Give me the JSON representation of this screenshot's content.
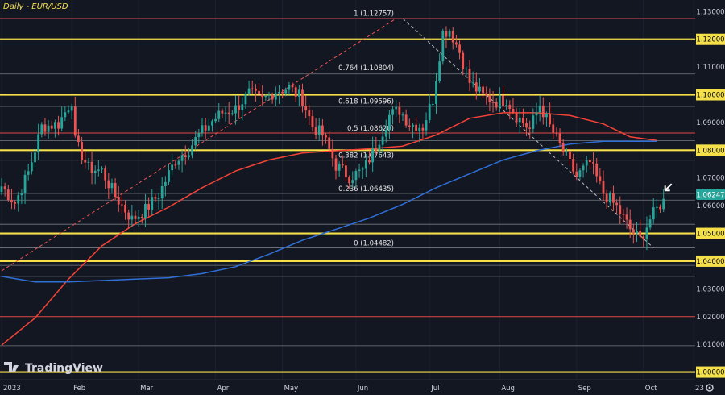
{
  "header": {
    "title": "Daily - EUR/USD"
  },
  "price_tag": {
    "value": "1.06247"
  },
  "logo": {
    "text": "TradingView"
  },
  "time_axis": {
    "settings_icon": "gear-icon"
  },
  "colors": {
    "background": "#131722",
    "up": "#26a69a",
    "down": "#ef5350",
    "yellow": "#f5e04a",
    "ma_red": "#f44336",
    "ma_blue": "#2f6fd6",
    "fib_line": "#8f8f8f",
    "axis_text": "#d1d4dc"
  },
  "chart_data": {
    "type": "candlestick",
    "title": "Daily - EUR/USD",
    "ylim": [
      0.999,
      1.133
    ],
    "x_axis_labels": [
      {
        "label": "2023",
        "x": 0
      },
      {
        "label": "Feb",
        "x": 21
      },
      {
        "label": "Mar",
        "x": 41
      },
      {
        "label": "Apr",
        "x": 64
      },
      {
        "label": "May",
        "x": 84
      },
      {
        "label": "Jun",
        "x": 106
      },
      {
        "label": "Jul",
        "x": 128
      },
      {
        "label": "Aug",
        "x": 149
      },
      {
        "label": "Sep",
        "x": 172
      },
      {
        "label": "Oct",
        "x": 192
      },
      {
        "label": "23",
        "x": 207
      }
    ],
    "y_ticks": [
      "1.13000",
      "1.12000",
      "1.11000",
      "1.10000",
      "1.09000",
      "1.08000",
      "1.07000",
      "1.06000",
      "1.05000",
      "1.04000",
      "1.03000",
      "1.02000",
      "1.01000",
      "1.00000"
    ],
    "yellow_levels": [
      1.12,
      1.1,
      1.08,
      1.05,
      1.04,
      1.0
    ],
    "red_levels": [
      1.1275,
      1.0862,
      1.02
    ],
    "gray_levels": [
      1.1075,
      1.0958,
      1.0834,
      1.0764,
      1.0644,
      1.062,
      1.0533,
      1.0448,
      1.0385,
      1.0345,
      1.0095
    ],
    "fibonacci": {
      "high": 1.12757,
      "low": 1.04482,
      "levels": [
        {
          "label": "1 (1.12757)",
          "price": 1.12757
        },
        {
          "label": "0.764 (1.10804)",
          "price": 1.10804
        },
        {
          "label": "0.618 (1.09596)",
          "price": 1.09596
        },
        {
          "label": "0.5 (1.08620)",
          "price": 1.0862
        },
        {
          "label": "0.382 (1.07643)",
          "price": 1.07643
        },
        {
          "label": "0.236 (1.06435)",
          "price": 1.06435
        },
        {
          "label": "0 (1.04482)",
          "price": 1.04482
        }
      ]
    },
    "trendlines": [
      {
        "name": "rising",
        "from": {
          "x": 0,
          "y": 1.0365
        },
        "to": {
          "x": 118,
          "y": 1.1275
        },
        "style": "dashed",
        "color": "#ef5350"
      },
      {
        "name": "falling",
        "from": {
          "x": 120,
          "y": 1.1275
        },
        "to": {
          "x": 195,
          "y": 1.0448
        },
        "style": "dashed",
        "color": "#bbbbbb"
      }
    ],
    "moving_averages": [
      {
        "name": "red",
        "color": "#f44336",
        "points": [
          [
            0,
            1.0097
          ],
          [
            10,
            1.0195
          ],
          [
            20,
            1.0335
          ],
          [
            30,
            1.0455
          ],
          [
            40,
            1.0535
          ],
          [
            50,
            1.0595
          ],
          [
            60,
            1.0665
          ],
          [
            70,
            1.0725
          ],
          [
            80,
            1.0765
          ],
          [
            90,
            1.079
          ],
          [
            100,
            1.0798
          ],
          [
            110,
            1.0805
          ],
          [
            120,
            1.0815
          ],
          [
            130,
            1.0855
          ],
          [
            140,
            1.0915
          ],
          [
            150,
            1.0935
          ],
          [
            160,
            1.0935
          ],
          [
            170,
            1.0925
          ],
          [
            180,
            1.0895
          ],
          [
            188,
            1.0848
          ],
          [
            196,
            1.0835
          ]
        ]
      },
      {
        "name": "blue",
        "color": "#2f6fd6",
        "points": [
          [
            0,
            1.0345
          ],
          [
            10,
            1.0325
          ],
          [
            20,
            1.0325
          ],
          [
            30,
            1.033
          ],
          [
            40,
            1.0335
          ],
          [
            50,
            1.034
          ],
          [
            60,
            1.0355
          ],
          [
            70,
            1.038
          ],
          [
            80,
            1.0425
          ],
          [
            90,
            1.0475
          ],
          [
            100,
            1.0515
          ],
          [
            110,
            1.0555
          ],
          [
            120,
            1.0605
          ],
          [
            130,
            1.0665
          ],
          [
            140,
            1.0715
          ],
          [
            150,
            1.0765
          ],
          [
            160,
            1.0798
          ],
          [
            170,
            1.0822
          ],
          [
            180,
            1.0832
          ],
          [
            188,
            1.0832
          ],
          [
            196,
            1.0832
          ]
        ]
      }
    ],
    "annotation": {
      "type": "arrow",
      "x": 198,
      "y": 1.0655,
      "color": "#ffffff"
    },
    "waypoints": [
      [
        0,
        1.067
      ],
      [
        4,
        1.061
      ],
      [
        8,
        1.072
      ],
      [
        12,
        1.0885
      ],
      [
        17,
        1.0895
      ],
      [
        21,
        1.098
      ],
      [
        22,
        1.083
      ],
      [
        26,
        1.0735
      ],
      [
        30,
        1.0725
      ],
      [
        34,
        1.0635
      ],
      [
        39,
        1.055
      ],
      [
        43,
        1.0585
      ],
      [
        47,
        1.064
      ],
      [
        52,
        1.0765
      ],
      [
        56,
        1.0805
      ],
      [
        59,
        1.0855
      ],
      [
        63,
        1.0905
      ],
      [
        66,
        1.0935
      ],
      [
        70,
        1.095
      ],
      [
        74,
        1.1005
      ],
      [
        78,
        1.098
      ],
      [
        82,
        1.1015
      ],
      [
        86,
        1.1025
      ],
      [
        90,
        1.0985
      ],
      [
        93,
        1.0885
      ],
      [
        96,
        1.0855
      ],
      [
        100,
        1.0745
      ],
      [
        104,
        1.0705
      ],
      [
        108,
        1.0725
      ],
      [
        112,
        1.0815
      ],
      [
        116,
        1.0925
      ],
      [
        119,
        1.0945
      ],
      [
        122,
        1.0895
      ],
      [
        126,
        1.0885
      ],
      [
        129,
        1.0985
      ],
      [
        132,
        1.1225
      ],
      [
        134,
        1.1235
      ],
      [
        137,
        1.1155
      ],
      [
        140,
        1.1045
      ],
      [
        144,
        1.0995
      ],
      [
        148,
        1.0975
      ],
      [
        151,
        1.0985
      ],
      [
        154,
        1.0925
      ],
      [
        158,
        1.0875
      ],
      [
        161,
        1.0965
      ],
      [
        164,
        1.0885
      ],
      [
        168,
        1.0795
      ],
      [
        172,
        1.0705
      ],
      [
        176,
        1.0755
      ],
      [
        180,
        1.0645
      ],
      [
        184,
        1.0595
      ],
      [
        188,
        1.0515
      ],
      [
        191,
        1.0478
      ],
      [
        194,
        1.0552
      ],
      [
        197,
        1.0605
      ],
      [
        198,
        1.06247
      ]
    ]
  }
}
